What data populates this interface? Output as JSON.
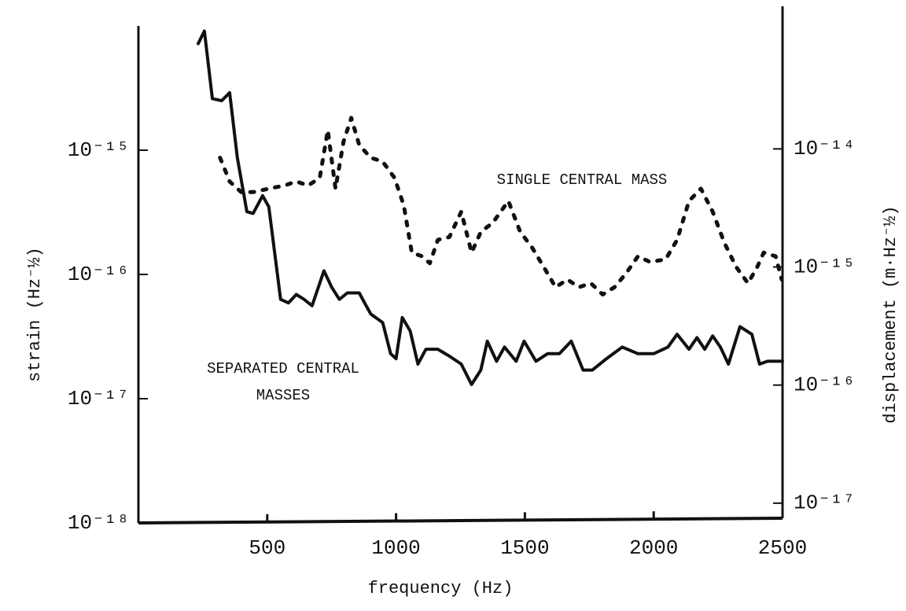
{
  "chart_data": {
    "type": "line",
    "xlabel": "frequency (Hz)",
    "ylabel": "strain (Hz⁻½)",
    "y2label": "displacement (m·Hz⁻½)",
    "xlim": [
      0,
      2500
    ],
    "xticks": [
      500,
      1000,
      1500,
      2000,
      2500
    ],
    "ylog": true,
    "ylim": [
      1e-18,
      1e-14
    ],
    "yticks": [
      {
        "value": 1e-18,
        "label": "10⁻¹⁸"
      },
      {
        "value": 1e-17,
        "label": "10⁻¹⁷"
      },
      {
        "value": 1e-16,
        "label": "10⁻¹⁶"
      },
      {
        "value": 1e-15,
        "label": "10⁻¹⁵"
      }
    ],
    "y2lim": [
      6.8e-18,
      1.1e-13
    ],
    "y2ticks": [
      {
        "value": 1e-17,
        "label": "10⁻¹⁷"
      },
      {
        "value": 1e-16,
        "label": "10⁻¹⁶"
      },
      {
        "value": 1e-15,
        "label": "10⁻¹⁵"
      },
      {
        "value": 1e-14,
        "label": "10⁻¹⁴"
      }
    ],
    "series": [
      {
        "name": "SEPARATED CENTRAL MASSES",
        "color": "#111111",
        "style": "solid",
        "x": [
          232,
          256,
          287,
          323,
          354,
          384,
          421,
          445,
          482,
          506,
          552,
          582,
          613,
          643,
          674,
          720,
          750,
          780,
          811,
          857,
          878,
          902,
          948,
          979,
          1000,
          1024,
          1055,
          1085,
          1116,
          1162,
          1207,
          1253,
          1293,
          1329,
          1354,
          1390,
          1421,
          1466,
          1497,
          1543,
          1588,
          1634,
          1680,
          1726,
          1762,
          1817,
          1878,
          1939,
          2000,
          2055,
          2091,
          2137,
          2168,
          2198,
          2229,
          2259,
          2290,
          2335,
          2381,
          2411,
          2442,
          2500
        ],
        "values": [
          7.2e-15,
          9.1e-15,
          2.6e-15,
          2.5e-15,
          2.9e-15,
          8.7e-16,
          3.2e-16,
          3.1e-16,
          4.3e-16,
          3.5e-16,
          6.3e-17,
          5.9e-17,
          6.9e-17,
          6.3e-17,
          5.6e-17,
          1.07e-16,
          7.9e-17,
          6.3e-17,
          7.1e-17,
          7.1e-17,
          5.9e-17,
          4.8e-17,
          4.1e-17,
          2.3e-17,
          2.1e-17,
          4.5e-17,
          3.5e-17,
          1.9e-17,
          2.5e-17,
          2.5e-17,
          2.2e-17,
          1.9e-17,
          1.3e-17,
          1.7e-17,
          2.9e-17,
          2e-17,
          2.6e-17,
          2e-17,
          2.9e-17,
          2e-17,
          2.3e-17,
          2.3e-17,
          2.9e-17,
          1.7e-17,
          1.7e-17,
          2.1e-17,
          2.6e-17,
          2.3e-17,
          2.3e-17,
          2.6e-17,
          3.3e-17,
          2.5e-17,
          3.1e-17,
          2.5e-17,
          3.2e-17,
          2.6e-17,
          1.9e-17,
          3.8e-17,
          3.3e-17,
          1.9e-17,
          2e-17,
          2e-17
        ]
      },
      {
        "name": "SINGLE CENTRAL MASS",
        "color": "#111111",
        "style": "dotted",
        "x": [
          317,
          354,
          399,
          445,
          506,
          567,
          613,
          659,
          704,
          735,
          765,
          796,
          826,
          857,
          902,
          948,
          994,
          1030,
          1061,
          1101,
          1131,
          1162,
          1207,
          1253,
          1293,
          1329,
          1375,
          1436,
          1482,
          1527,
          1573,
          1619,
          1665,
          1710,
          1756,
          1802,
          1848,
          1893,
          1939,
          1985,
          2046,
          2091,
          2137,
          2183,
          2229,
          2274,
          2320,
          2366,
          2402,
          2427,
          2473,
          2497
        ],
        "values": [
          8.7e-16,
          5.6e-16,
          4.6e-16,
          4.6e-16,
          4.9e-16,
          5.2e-16,
          5.6e-16,
          5.2e-16,
          6e-16,
          1.45e-15,
          4.9e-16,
          1.17e-15,
          1.82e-15,
          1.1e-15,
          8.7e-16,
          8.1e-16,
          6e-16,
          3.6e-16,
          1.5e-16,
          1.4e-16,
          1.23e-16,
          1.9e-16,
          2e-16,
          3.2e-16,
          1.5e-16,
          2.2e-16,
          2.6e-16,
          3.9e-16,
          2.2e-16,
          1.66e-16,
          1.15e-16,
          7.9e-17,
          9.1e-17,
          7.9e-17,
          8.5e-17,
          6.9e-17,
          7.9e-17,
          1.02e-16,
          1.4e-16,
          1.26e-16,
          1.32e-16,
          1.9e-16,
          3.9e-16,
          4.9e-16,
          3.2e-16,
          1.8e-16,
          1.15e-16,
          8.5e-17,
          1.15e-16,
          1.5e-16,
          1.4e-16,
          9.1e-17
        ]
      }
    ]
  }
}
